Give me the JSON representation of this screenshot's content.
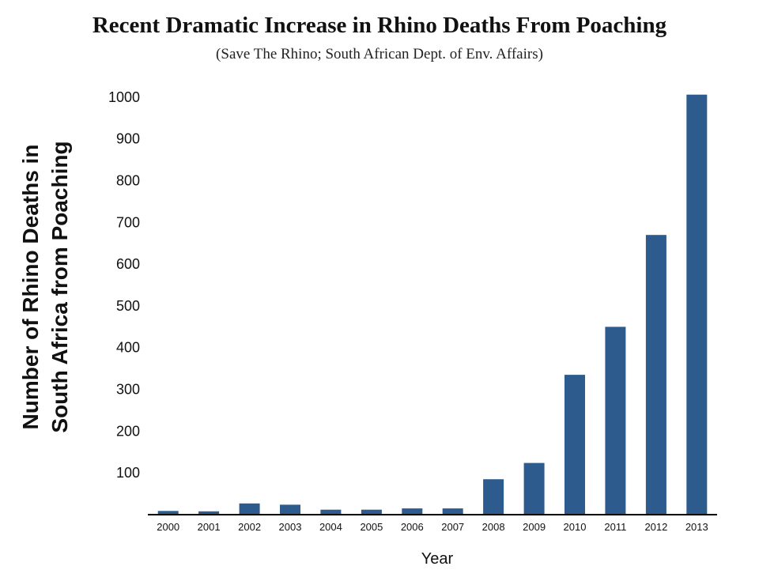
{
  "chart_data": {
    "type": "bar",
    "title": "Recent Dramatic Increase in Rhino Deaths From Poaching",
    "subtitle": "(Save The Rhino; South African Dept. of Env. Affairs)",
    "xlabel": "Year",
    "ylabel_lines": [
      "Number of Rhino Deaths in",
      "South Africa from Poaching"
    ],
    "categories": [
      "2000",
      "2001",
      "2002",
      "2003",
      "2004",
      "2005",
      "2006",
      "2007",
      "2008",
      "2009",
      "2010",
      "2011",
      "2012",
      "2013"
    ],
    "values": [
      7,
      6,
      25,
      22,
      10,
      10,
      13,
      13,
      83,
      122,
      333,
      448,
      668,
      1004
    ],
    "ylim": [
      0,
      1030
    ],
    "yticks": [
      100,
      200,
      300,
      400,
      500,
      600,
      700,
      800,
      900,
      1000
    ],
    "grid": false,
    "legend": false,
    "bar_color": "#2e5b8e",
    "axis_color": "#000000"
  }
}
